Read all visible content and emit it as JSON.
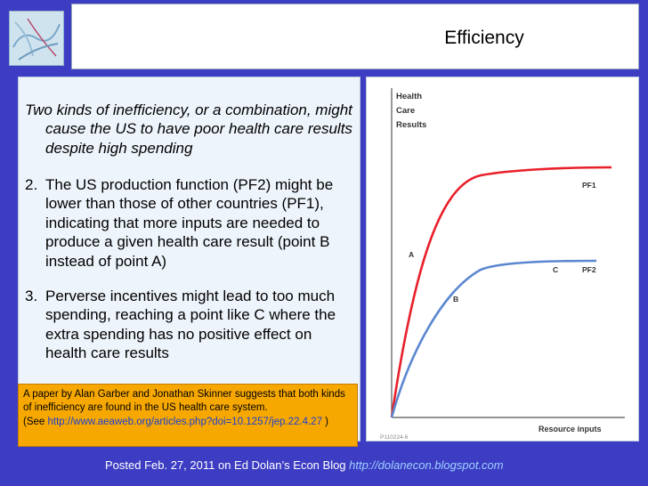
{
  "title": "Efficiency",
  "text": {
    "intro": "Two kinds of inefficiency, or a combination, might cause the US to have poor health care results despite high spending",
    "points": [
      {
        "num": "2.",
        "text": "The US production function (PF2) might be lower than those of other countries (PF1), indicating that more inputs are needed to produce a given health care result (point B instead of point A)"
      },
      {
        "num": "3.",
        "text": "Perverse incentives might lead to too much spending, reaching a point like C where the extra spending has no positive effect on health care results"
      }
    ]
  },
  "citation": {
    "body": "A paper by Alan Garber and Jonathan Skinner suggests that both kinds of inefficiency are found  in the US health care system.",
    "see_prefix": "(See ",
    "see_url": "http://www.aeaweb.org/articles.php?doi=10.1257/jep.22.4.27",
    "see_suffix": " )"
  },
  "chart": {
    "ylabel_lines": [
      "Health",
      "Care",
      "Results"
    ],
    "xlabel": "Resource inputs",
    "curve_labels": {
      "pf1": "PF1",
      "pf2": "PF2"
    },
    "point_labels": {
      "a": "A",
      "b": "B",
      "c": "C"
    },
    "code": "P110224-6",
    "colors": {
      "pf1": "#e8202a",
      "pf2": "#5b87d0",
      "axis": "#555555",
      "labels": "#333333"
    }
  },
  "footer": {
    "text": "Posted Feb. 27, 2011 on Ed Dolan’s Econ Blog ",
    "url": "http://dolanecon.blogspot.com"
  }
}
